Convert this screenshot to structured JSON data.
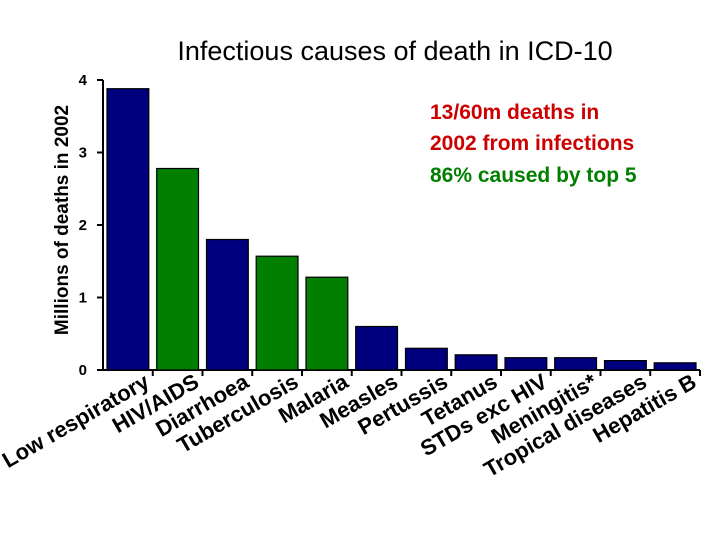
{
  "chart_data": {
    "type": "bar",
    "title": "Infectious causes of death in ICD-10",
    "ylabel": "Millions of deaths in 2002",
    "xlabel": "",
    "ylim": [
      0,
      4
    ],
    "yticks": [
      "0",
      "1",
      "2",
      "3",
      "4"
    ],
    "grid": false,
    "categories": [
      "Low respiratory",
      "HIV/AIDS",
      "Diarrhoea",
      "Tuberculosis",
      "Malaria",
      "Measles",
      "Pertussis",
      "Tetanus",
      "STDs exc HIV",
      "Meningitis*",
      "Tropical diseases",
      "Hepatitis B"
    ],
    "values": [
      3.88,
      2.78,
      1.8,
      1.57,
      1.28,
      0.6,
      0.3,
      0.21,
      0.17,
      0.17,
      0.13,
      0.1
    ],
    "colors": [
      "#00007f",
      "#007f00",
      "#00007f",
      "#007f00",
      "#007f00",
      "#00007f",
      "#00007f",
      "#00007f",
      "#00007f",
      "#00007f",
      "#00007f",
      "#00007f"
    ],
    "annotations": [
      {
        "text": "13/60m deaths in",
        "color": "#cc0000"
      },
      {
        "text": "2002 from infections",
        "color": "#cc0000"
      },
      {
        "text": "86% caused by top 5",
        "color": "#007f00"
      }
    ]
  }
}
